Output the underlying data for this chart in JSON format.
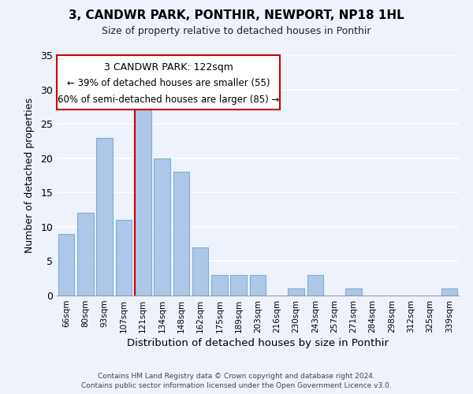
{
  "title": "3, CANDWR PARK, PONTHIR, NEWPORT, NP18 1HL",
  "subtitle": "Size of property relative to detached houses in Ponthir",
  "xlabel": "Distribution of detached houses by size in Ponthir",
  "ylabel": "Number of detached properties",
  "bar_labels": [
    "66sqm",
    "80sqm",
    "93sqm",
    "107sqm",
    "121sqm",
    "134sqm",
    "148sqm",
    "162sqm",
    "175sqm",
    "189sqm",
    "203sqm",
    "216sqm",
    "230sqm",
    "243sqm",
    "257sqm",
    "271sqm",
    "284sqm",
    "298sqm",
    "312sqm",
    "325sqm",
    "339sqm"
  ],
  "bar_values": [
    9,
    12,
    23,
    11,
    28,
    20,
    18,
    7,
    3,
    3,
    3,
    0,
    1,
    3,
    0,
    1,
    0,
    0,
    0,
    0,
    1
  ],
  "bar_color": "#aec6e8",
  "bar_edge_color": "#7bafd4",
  "annotation_text_line1": "3 CANDWR PARK: 122sqm",
  "annotation_text_line2": "← 39% of detached houses are smaller (55)",
  "annotation_text_line3": "60% of semi-detached houses are larger (85) →",
  "annotation_box_color": "#ffffff",
  "annotation_border_color": "#cc0000",
  "vline_color": "#cc0000",
  "ylim": [
    0,
    35
  ],
  "yticks": [
    0,
    5,
    10,
    15,
    20,
    25,
    30,
    35
  ],
  "footer_line1": "Contains HM Land Registry data © Crown copyright and database right 2024.",
  "footer_line2": "Contains public sector information licensed under the Open Government Licence v3.0.",
  "background_color": "#eef2fb",
  "grid_color": "#ffffff"
}
